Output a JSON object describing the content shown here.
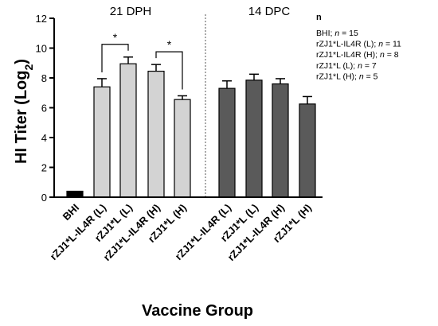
{
  "chart_data": {
    "type": "bar",
    "ylabel": "HI Titer (Log",
    "ylabel_sub": "2",
    "ylabel_close": ")",
    "xlabel": "Vaccine Group",
    "ylim": [
      0,
      12
    ],
    "yticks": [
      "0",
      "2",
      "4",
      "6",
      "8",
      "10",
      "12"
    ],
    "grid": false,
    "groups": [
      {
        "label": "21 DPH"
      },
      {
        "label": "14 DPC"
      }
    ],
    "bars": [
      {
        "category": "BHI",
        "value": 0.4,
        "error": 0,
        "color": "#000000"
      },
      {
        "category": "rZJ1*L-IL4R (L)",
        "value": 7.4,
        "error": 0.55,
        "color": "#d3d3d3"
      },
      {
        "category": "rZJ1*L (L)",
        "value": 8.95,
        "error": 0.45,
        "color": "#d3d3d3"
      },
      {
        "category": "rZJ1*L-IL4R (H)",
        "value": 8.45,
        "error": 0.45,
        "color": "#d3d3d3"
      },
      {
        "category": "rZJ1*L (H)",
        "value": 6.55,
        "error": 0.25,
        "color": "#d3d3d3"
      },
      {
        "category": "rZJ1*L-IL4R (L)",
        "value": 7.3,
        "error": 0.5,
        "color": "#5a5a5a"
      },
      {
        "category": "rZJ1*L (L)",
        "value": 7.85,
        "error": 0.4,
        "color": "#5a5a5a"
      },
      {
        "category": "rZJ1*L-IL4R (H)",
        "value": 7.6,
        "error": 0.35,
        "color": "#5a5a5a"
      },
      {
        "category": "rZJ1*L (H)",
        "value": 6.25,
        "error": 0.5,
        "color": "#5a5a5a"
      }
    ],
    "significance": [
      {
        "from": 1,
        "to": 2,
        "label": "*"
      },
      {
        "from": 3,
        "to": 4,
        "label": "*"
      }
    ],
    "legend": {
      "position": "top-right",
      "title": "n",
      "entries": [
        {
          "prefix": "BHI; ",
          "n": "n",
          "suffix": " = 15"
        },
        {
          "prefix": "rZJ1*L-IL4R (L); ",
          "n": "n",
          "suffix": " = 11"
        },
        {
          "prefix": "rZJ1*L-IL4R (H); ",
          "n": "n",
          "suffix": " = 8"
        },
        {
          "prefix": "rZJ1*L (L); ",
          "n": "n",
          "suffix": " = 7"
        },
        {
          "prefix": "rZJ1*L (H); ",
          "n": "n",
          "suffix": " =  5"
        }
      ]
    }
  }
}
